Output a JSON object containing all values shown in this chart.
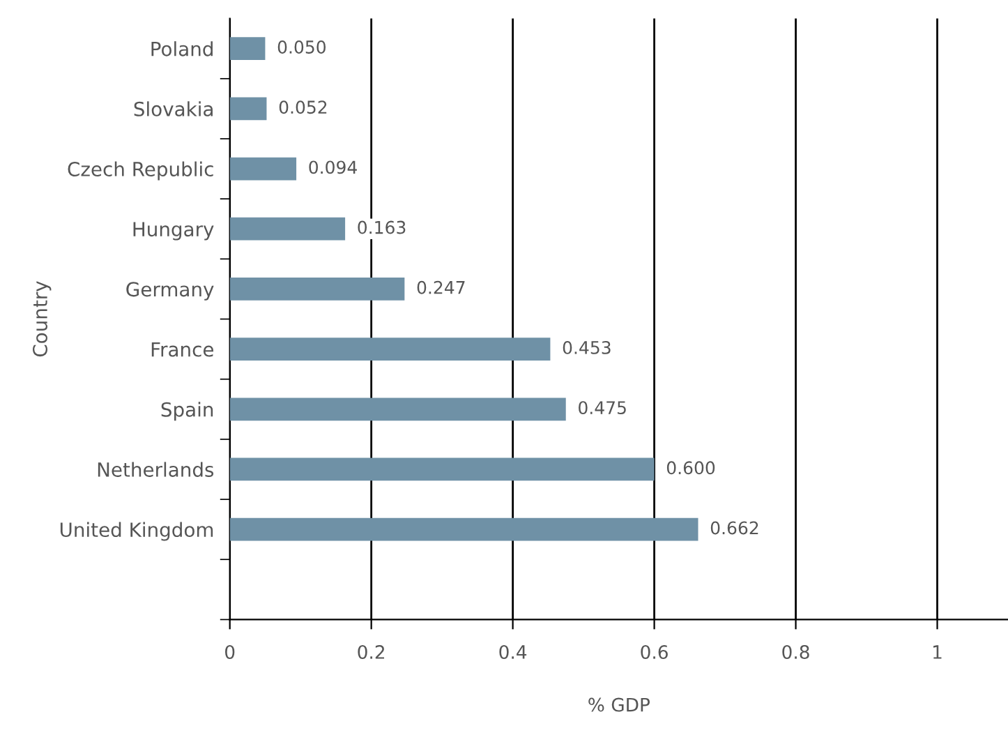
{
  "chart_data": {
    "type": "bar",
    "orientation": "horizontal",
    "xlabel": "% GDP",
    "ylabel": "Country",
    "categories": [
      "Poland",
      "Slovakia",
      "Czech Republic",
      "Hungary",
      "Germany",
      "France",
      "Spain",
      "Netherlands",
      "United Kingdom"
    ],
    "values": [
      0.05,
      0.052,
      0.094,
      0.163,
      0.247,
      0.453,
      0.475,
      0.6,
      0.662
    ],
    "value_labels": [
      "0.050",
      "0.052",
      "0.094",
      "0.163",
      "0.247",
      "0.453",
      "0.475",
      "0.600",
      "0.662"
    ],
    "color": "#6f91a6",
    "xlim": [
      0,
      1.1
    ],
    "xticks": [
      0,
      0.2,
      0.4,
      0.6,
      0.8,
      1
    ],
    "grid": "x"
  }
}
